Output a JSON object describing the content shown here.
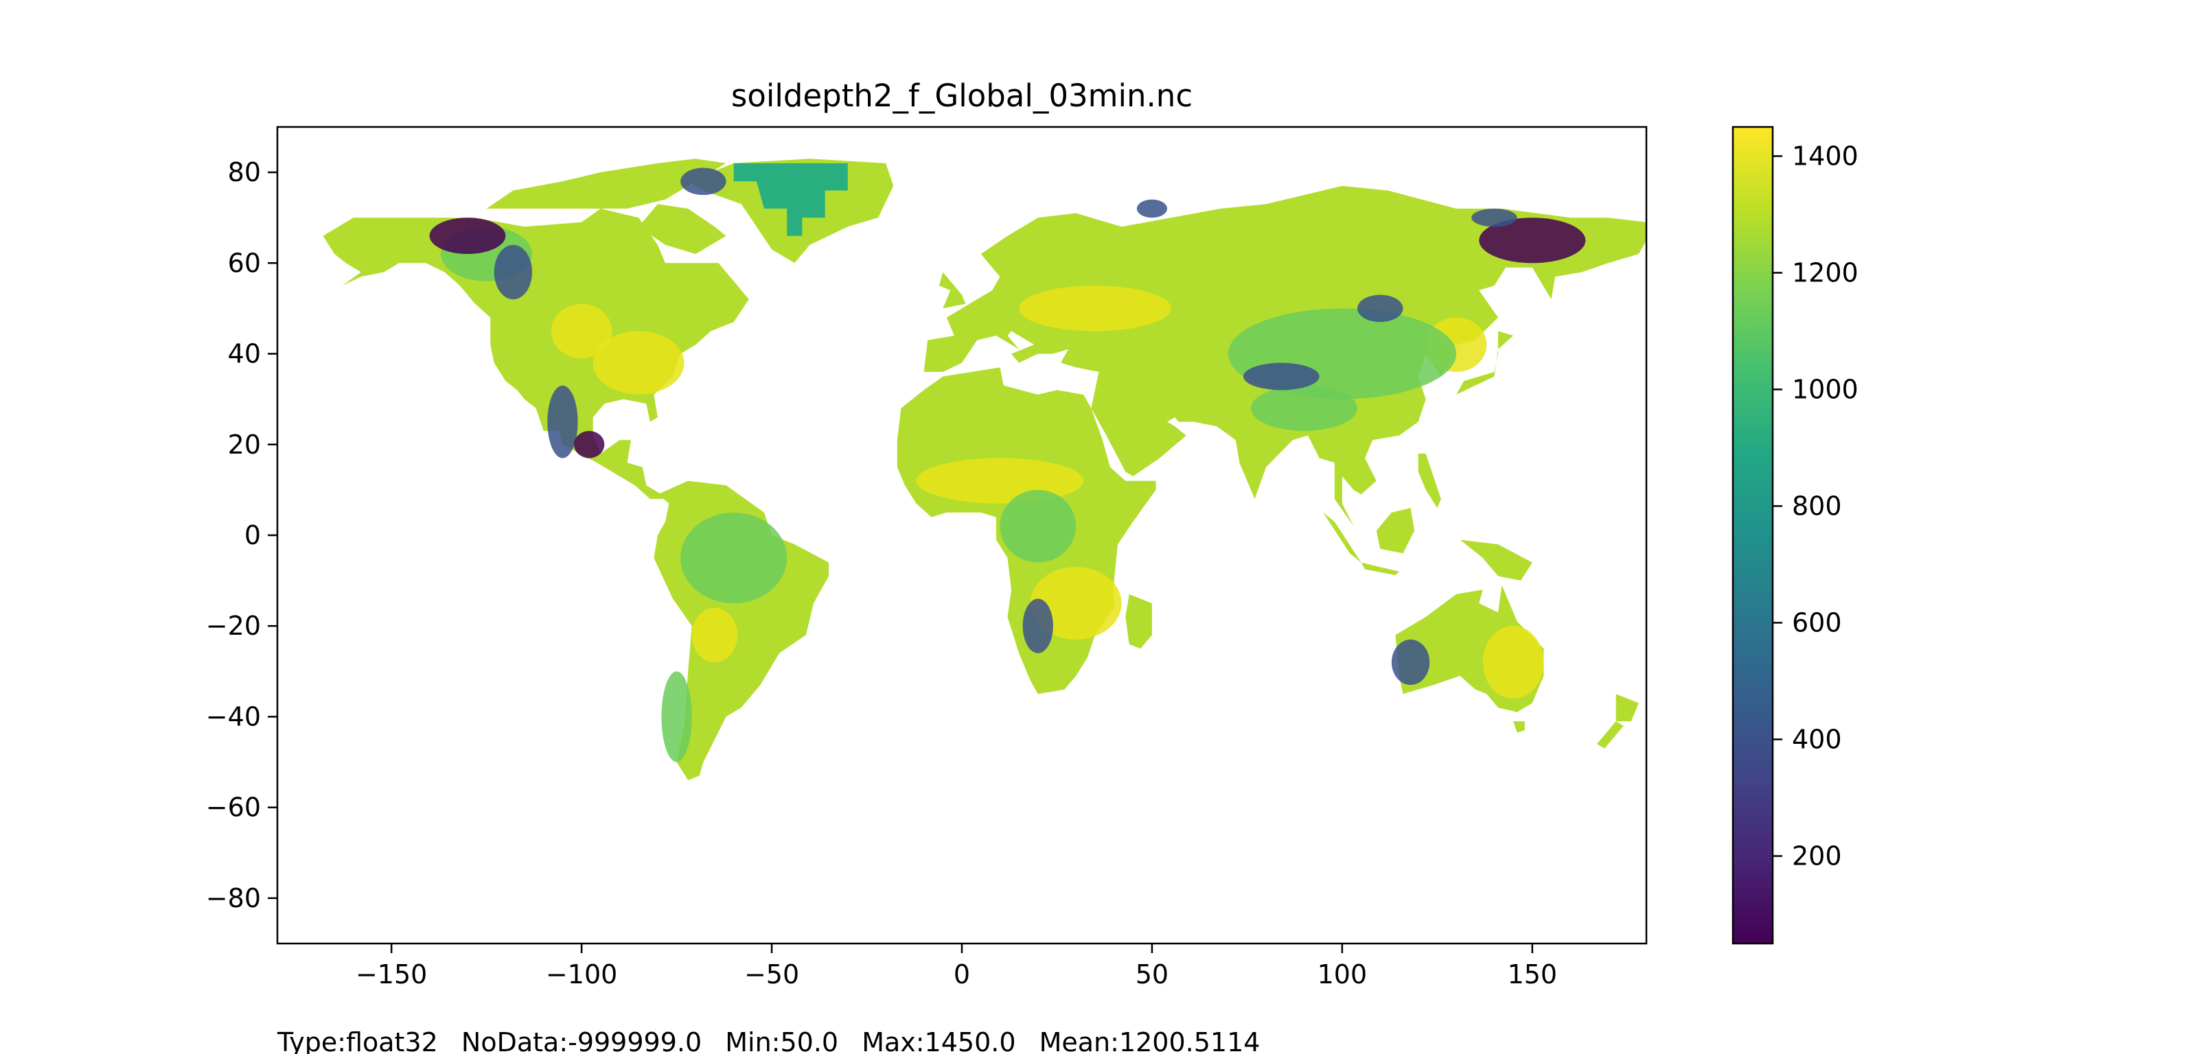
{
  "figure": {
    "title": "soildepth2_f_Global_03min.nc",
    "footer": {
      "type": "Type:float32",
      "nodata": "NoData:-999999.0",
      "min": "Min:50.0",
      "max": "Max:1450.0",
      "mean": "Mean:1200.5114"
    }
  },
  "chart_data": {
    "type": "heatmap",
    "title": "soildepth2_f_Global_03min.nc",
    "xlabel": "",
    "ylabel": "",
    "xlim": [
      -180,
      180
    ],
    "ylim": [
      -90,
      90
    ],
    "x_ticks": [
      -150,
      -100,
      -50,
      0,
      50,
      100,
      150
    ],
    "y_ticks": [
      80,
      60,
      40,
      20,
      0,
      -20,
      -40,
      -60,
      -80
    ],
    "x_tick_labels": [
      "−150",
      "−100",
      "−50",
      "0",
      "50",
      "100",
      "150"
    ],
    "y_tick_labels": [
      "80",
      "60",
      "40",
      "20",
      "0",
      "−20",
      "−40",
      "−60",
      "−80"
    ],
    "colorbar": {
      "colormap": "viridis",
      "range": [
        50,
        1450
      ],
      "ticks": [
        200,
        400,
        600,
        800,
        1000,
        1200,
        1400
      ],
      "tick_labels": [
        "200",
        "400",
        "600",
        "800",
        "1000",
        "1200",
        "1400"
      ]
    },
    "grid": false
  },
  "colors": {
    "land_base": "#b3dd2e",
    "land_high": "#e8e419",
    "land_mid": "#6ccd5a",
    "land_low": "#3b528b",
    "land_deep": "#440154",
    "greenland_blocks": "#29af7f",
    "ocean": "#ffffff",
    "axis": "#000000"
  }
}
